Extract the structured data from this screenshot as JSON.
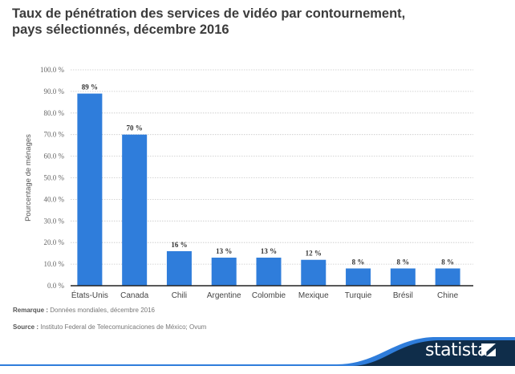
{
  "chart_data": {
    "type": "bar",
    "title": "Taux de pénétration des services de vidéo par contournement, pays sélectionnés, décembre 2016",
    "title_lines": [
      "Taux de pénétration des services de vidéo par contournement,",
      "pays sélectionnés, décembre 2016"
    ],
    "xlabel": "",
    "ylabel": "Pourcentage de ménages",
    "ylim": [
      0,
      100
    ],
    "yticks": [
      0,
      10,
      20,
      30,
      40,
      50,
      60,
      70,
      80,
      90,
      100
    ],
    "ytick_labels": [
      "0.0 %",
      "10.0 %",
      "20.0 %",
      "30.0 %",
      "40.0 %",
      "50.0 %",
      "60.0 %",
      "70.0 %",
      "80.0 %",
      "90.0 %",
      "100.0 %"
    ],
    "categories": [
      "États-Unis",
      "Canada",
      "Chili",
      "Argentine",
      "Colombie",
      "Mexique",
      "Turquie",
      "Brésil",
      "Chine"
    ],
    "values": [
      89,
      70,
      16,
      13,
      13,
      12,
      8,
      8,
      8
    ],
    "data_labels": [
      "89 %",
      "70 %",
      "16 %",
      "13 %",
      "13 %",
      "12 %",
      "8 %",
      "8 %",
      "8 %"
    ],
    "grid": true,
    "bar_color": "#2f7ddb"
  },
  "notes": {
    "remark_label": "Remarque :",
    "remark_text": "Données mondiales, décembre 2016",
    "source_label": "Source :",
    "source_text": "Instituto Federal de Telecomunicaciones de México; Ovum"
  },
  "brand": {
    "name": "statista",
    "dark_color": "#0f2d4a",
    "accent_color": "#2f7ddb"
  }
}
